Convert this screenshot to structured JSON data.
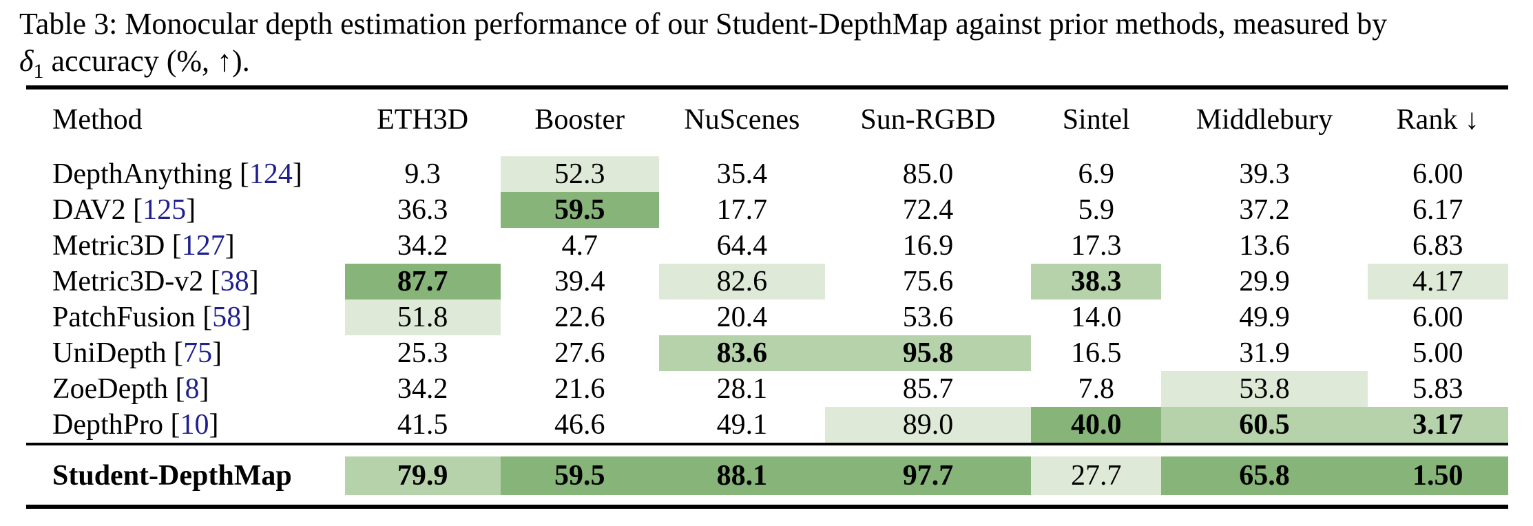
{
  "caption": {
    "prefix": "Table 3: Monocular depth estimation performance of our Student-DepthMap against prior methods, measured by",
    "delta": "δ",
    "delta_sub": "1",
    "suffix": " accuracy (%, ↑)."
  },
  "colors": {
    "rank1_dark_green": "#87b478",
    "rank2_medium_green": "#b6d2ab",
    "rank3_light_green": "#dfe9d8",
    "citation_blue": "#1f1f8f"
  },
  "table": {
    "columns": [
      "Method",
      "ETH3D",
      "Booster",
      "NuScenes",
      "Sun-RGBD",
      "Sintel",
      "Middlebury",
      "Rank ↓"
    ],
    "cite_brackets": [
      "[",
      "]"
    ],
    "rows": [
      {
        "method": "DepthAnything",
        "cite": "124",
        "cells": [
          {
            "t": "9.3"
          },
          {
            "t": "52.3",
            "s": 3
          },
          {
            "t": "35.4"
          },
          {
            "t": "85.0"
          },
          {
            "t": "6.9"
          },
          {
            "t": "39.3"
          },
          {
            "t": "6.00"
          }
        ]
      },
      {
        "method": "DAV2",
        "cite": "125",
        "cells": [
          {
            "t": "36.3"
          },
          {
            "t": "59.5",
            "s": 1,
            "b": true
          },
          {
            "t": "17.7"
          },
          {
            "t": "72.4"
          },
          {
            "t": "5.9"
          },
          {
            "t": "37.2"
          },
          {
            "t": "6.17"
          }
        ]
      },
      {
        "method": "Metric3D",
        "cite": "127",
        "cells": [
          {
            "t": "34.2"
          },
          {
            "t": "4.7"
          },
          {
            "t": "64.4"
          },
          {
            "t": "16.9"
          },
          {
            "t": "17.3"
          },
          {
            "t": "13.6"
          },
          {
            "t": "6.83"
          }
        ]
      },
      {
        "method": "Metric3D-v2",
        "cite": "38",
        "cells": [
          {
            "t": "87.7",
            "s": 1,
            "b": true
          },
          {
            "t": "39.4"
          },
          {
            "t": "82.6",
            "s": 3
          },
          {
            "t": "75.6"
          },
          {
            "t": "38.3",
            "s": 2,
            "b": true
          },
          {
            "t": "29.9"
          },
          {
            "t": "4.17",
            "s": 3
          }
        ]
      },
      {
        "method": "PatchFusion",
        "cite": "58",
        "cells": [
          {
            "t": "51.8",
            "s": 3
          },
          {
            "t": "22.6"
          },
          {
            "t": "20.4"
          },
          {
            "t": "53.6"
          },
          {
            "t": "14.0"
          },
          {
            "t": "49.9"
          },
          {
            "t": "6.00"
          }
        ]
      },
      {
        "method": "UniDepth",
        "cite": "75",
        "cells": [
          {
            "t": "25.3"
          },
          {
            "t": "27.6"
          },
          {
            "t": "83.6",
            "s": 2,
            "b": true
          },
          {
            "t": "95.8",
            "s": 2,
            "b": true
          },
          {
            "t": "16.5"
          },
          {
            "t": "31.9"
          },
          {
            "t": "5.00"
          }
        ]
      },
      {
        "method": "ZoeDepth",
        "cite": "8",
        "cells": [
          {
            "t": "34.2"
          },
          {
            "t": "21.6"
          },
          {
            "t": "28.1"
          },
          {
            "t": "85.7"
          },
          {
            "t": "7.8"
          },
          {
            "t": "53.8",
            "s": 3
          },
          {
            "t": "5.83"
          }
        ]
      },
      {
        "method": "DepthPro",
        "cite": "10",
        "cells": [
          {
            "t": "41.5"
          },
          {
            "t": "46.6"
          },
          {
            "t": "49.1"
          },
          {
            "t": "89.0",
            "s": 3
          },
          {
            "t": "40.0",
            "s": 1,
            "b": true
          },
          {
            "t": "60.5",
            "s": 2,
            "b": true
          },
          {
            "t": "3.17",
            "s": 2,
            "b": true
          }
        ]
      }
    ],
    "student": {
      "method": "Student-DepthMap",
      "cells": [
        {
          "t": "79.9",
          "s": 2,
          "b": true
        },
        {
          "t": "59.5",
          "s": 1,
          "b": true
        },
        {
          "t": "88.1",
          "s": 1,
          "b": true
        },
        {
          "t": "97.7",
          "s": 1,
          "b": true
        },
        {
          "t": "27.7",
          "s": 3
        },
        {
          "t": "65.8",
          "s": 1,
          "b": true
        },
        {
          "t": "1.50",
          "s": 1,
          "b": true
        }
      ]
    }
  }
}
